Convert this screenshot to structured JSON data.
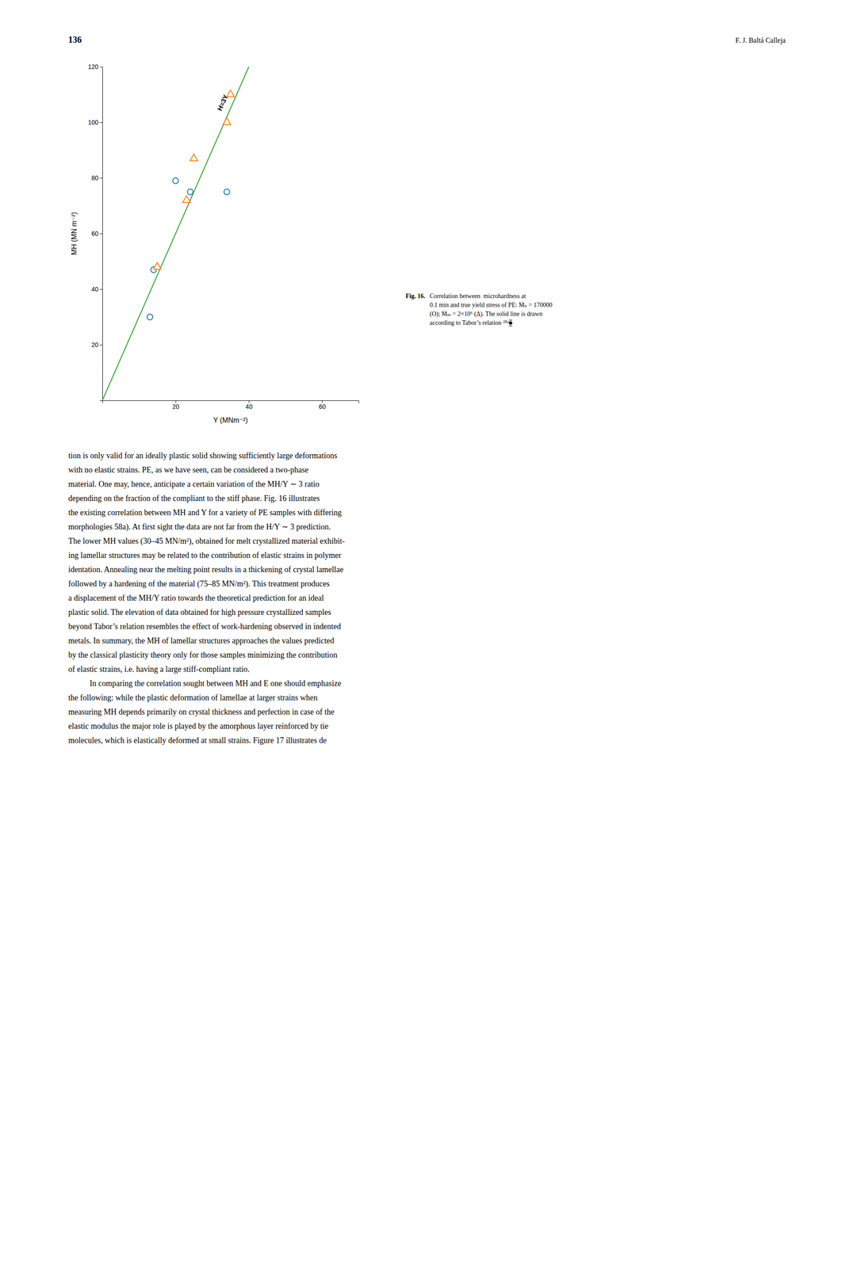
{
  "page_number": "136",
  "author": "F. J. Baltá Calleja",
  "caption": {
    "label": "Fig. 16.",
    "lines": [
      "Correlation between  microhardness at",
      "0.1 min and true yield stress of PE: Ṁₙ = 170000",
      "(O); Ṁₘ = 2×10⁶ (Δ). The solid line is drawn",
      "according to Tabor’s relation ²⁸ᵃ⧳"
    ]
  },
  "body_paragraphs": [
    [
      "tion is only valid for an ideally plastic solid showing sufficiently large deformations",
      "with no elastic strains. PE, as we have seen, can be considered a two-phase",
      "material. One may, hence, anticipate a certain variation of the MH/Y ∼ 3 ratio",
      "depending on the fraction of the compliant to the stiff phase. Fig. 16 illustrates",
      "the existing correlation between MH and Y for a variety of PE samples with differing",
      "morphologies 58a). At first sight the data are not far from the H/Y ∼ 3 prediction.",
      "The lower MH values (30–45 MN/m²), obtained for melt crystallized material exhibit-",
      "ing lamellar structures may be related to the contribution of elastic strains in polymer",
      "identation. Annealing near the melting point results in a thickening of crystal lamellae",
      "followed by a hardening of the material (75–85 MN/m²). This treatment produces",
      "a displacement of the MH/Y ratio towards the theoretical prediction for an ideal",
      "plastic solid. The elevation of data obtained for high pressure crystallized samples",
      "beyond Tabor’s relation resembles the effect of work-hardening observed in indented",
      "metals. In summary, the MH of lamellar structures approaches the values predicted",
      "by the classical plasticity theory only for those samples minimizing the contribution",
      "of elastic strains, i.e. having a large stiff-compliant ratio."
    ],
    [
      "In comparing the correlation sought between MH and E one should emphasize",
      "the following: while the plastic deformation of lamellae at larger strains when",
      "measuring MH depends primarily on crystal thickness and perfection in case of the",
      "elastic modulus the major role is played by the amorphous layer reinforced by tie",
      "molecules, which is elastically deformed at small strains. Figure 17 illustrates de"
    ]
  ],
  "chart_data": {
    "type": "scatter",
    "xlabel": "Y (MNm⁻²)",
    "ylabel": "MH (MN m⁻²)",
    "xlim": [
      0,
      70
    ],
    "ylim": [
      0,
      120
    ],
    "xticks": [
      {
        "value": 0,
        "label": null
      },
      20,
      40,
      60
    ],
    "yticks": [
      {
        "value": 0,
        "label": null
      },
      20,
      40,
      60,
      80,
      100,
      120
    ],
    "series": [
      {
        "type": "scatter",
        "marker": "circle",
        "x": [
          13,
          14,
          20,
          24,
          34
        ],
        "values": [
          30,
          47,
          79,
          75,
          75
        ]
      },
      {
        "type": "scatter",
        "marker": "triangle",
        "x": [
          15,
          23,
          25,
          34,
          35
        ],
        "values": [
          48,
          72,
          87,
          100,
          110
        ]
      },
      {
        "type": "line",
        "x": [
          0,
          40
        ],
        "values": [
          0,
          120
        ]
      }
    ],
    "annotations": [
      {
        "text": "H=3Y",
        "x": 33,
        "y": 107
      }
    ]
  }
}
